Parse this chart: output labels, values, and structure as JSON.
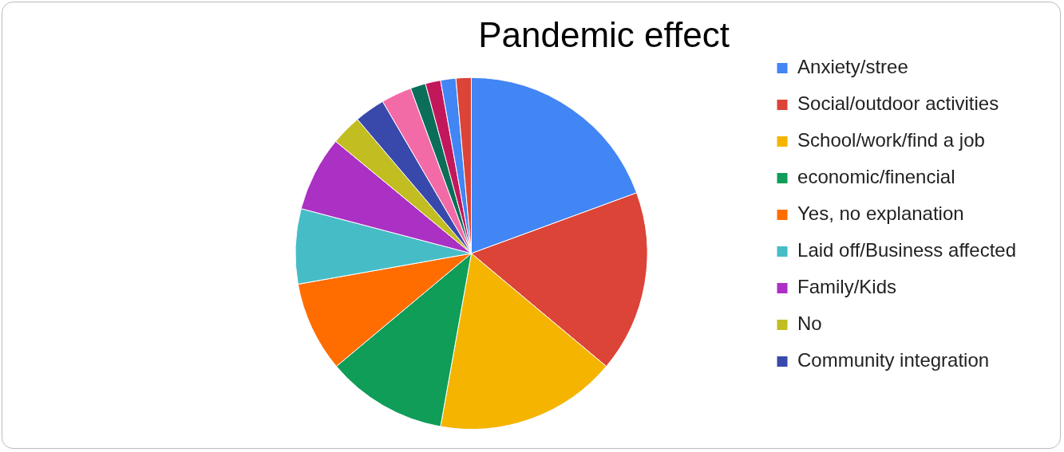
{
  "chart_data": {
    "type": "pie",
    "title": "Pandemic effect",
    "legend": "right",
    "categories": [
      "Anxiety/stree",
      "Social/outdoor activities",
      "School/work/find a job",
      "economic/finencial",
      "Yes, no explanation",
      "Laid off/Business affected",
      "Family/Kids",
      "No",
      "Community integration",
      null,
      null,
      null,
      null,
      null
    ],
    "values": [
      19.4,
      16.7,
      16.7,
      11.1,
      8.3,
      6.9,
      6.9,
      2.8,
      2.8,
      2.8,
      1.4,
      1.4,
      1.4,
      1.4
    ],
    "colors": [
      "#4285f4",
      "#db4437",
      "#f4b400",
      "#0f9d58",
      "#ff6d01",
      "#46bdc6",
      "#ab30c4",
      "#c2bd21",
      "#3949ab",
      "#f36ba6",
      "#0b6e58",
      "#c2185b",
      "#4285f4",
      "#db4437"
    ]
  }
}
